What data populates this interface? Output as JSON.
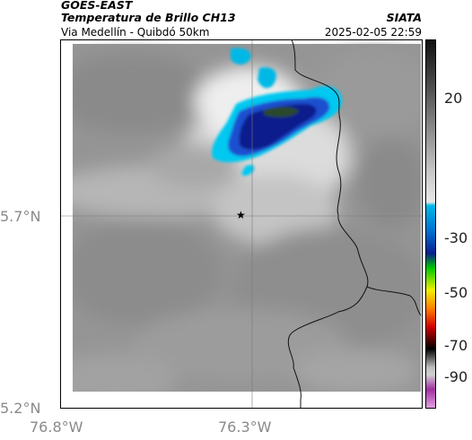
{
  "header": {
    "title": "GOES-EAST",
    "subtitle": "Temperatura de Brillo CH13",
    "location": "Via Medellín - Quibdó 50km",
    "organization": "SIATA",
    "datetime": "2025-02-05 22:59"
  },
  "map": {
    "lat_ticks": [
      "5.7°N",
      "5.2°N"
    ],
    "lon_ticks": [
      "76.8°W",
      "76.3°W"
    ],
    "marker": {
      "symbol": "★",
      "name": "location-star"
    }
  },
  "colorbar": {
    "ticks": [
      "20",
      "-30",
      "-50",
      "-70",
      "-90"
    ],
    "colors": {
      "gray_top": "#111111",
      "gray_bottom": "#e8e8e8",
      "cyan": "#00b8e6",
      "blue": "#0a1f8c",
      "green": "#00c800",
      "yellow": "#f0f000",
      "orange": "#ff8000",
      "red": "#d00000",
      "black": "#000000",
      "magenta": "#a030a0"
    }
  }
}
